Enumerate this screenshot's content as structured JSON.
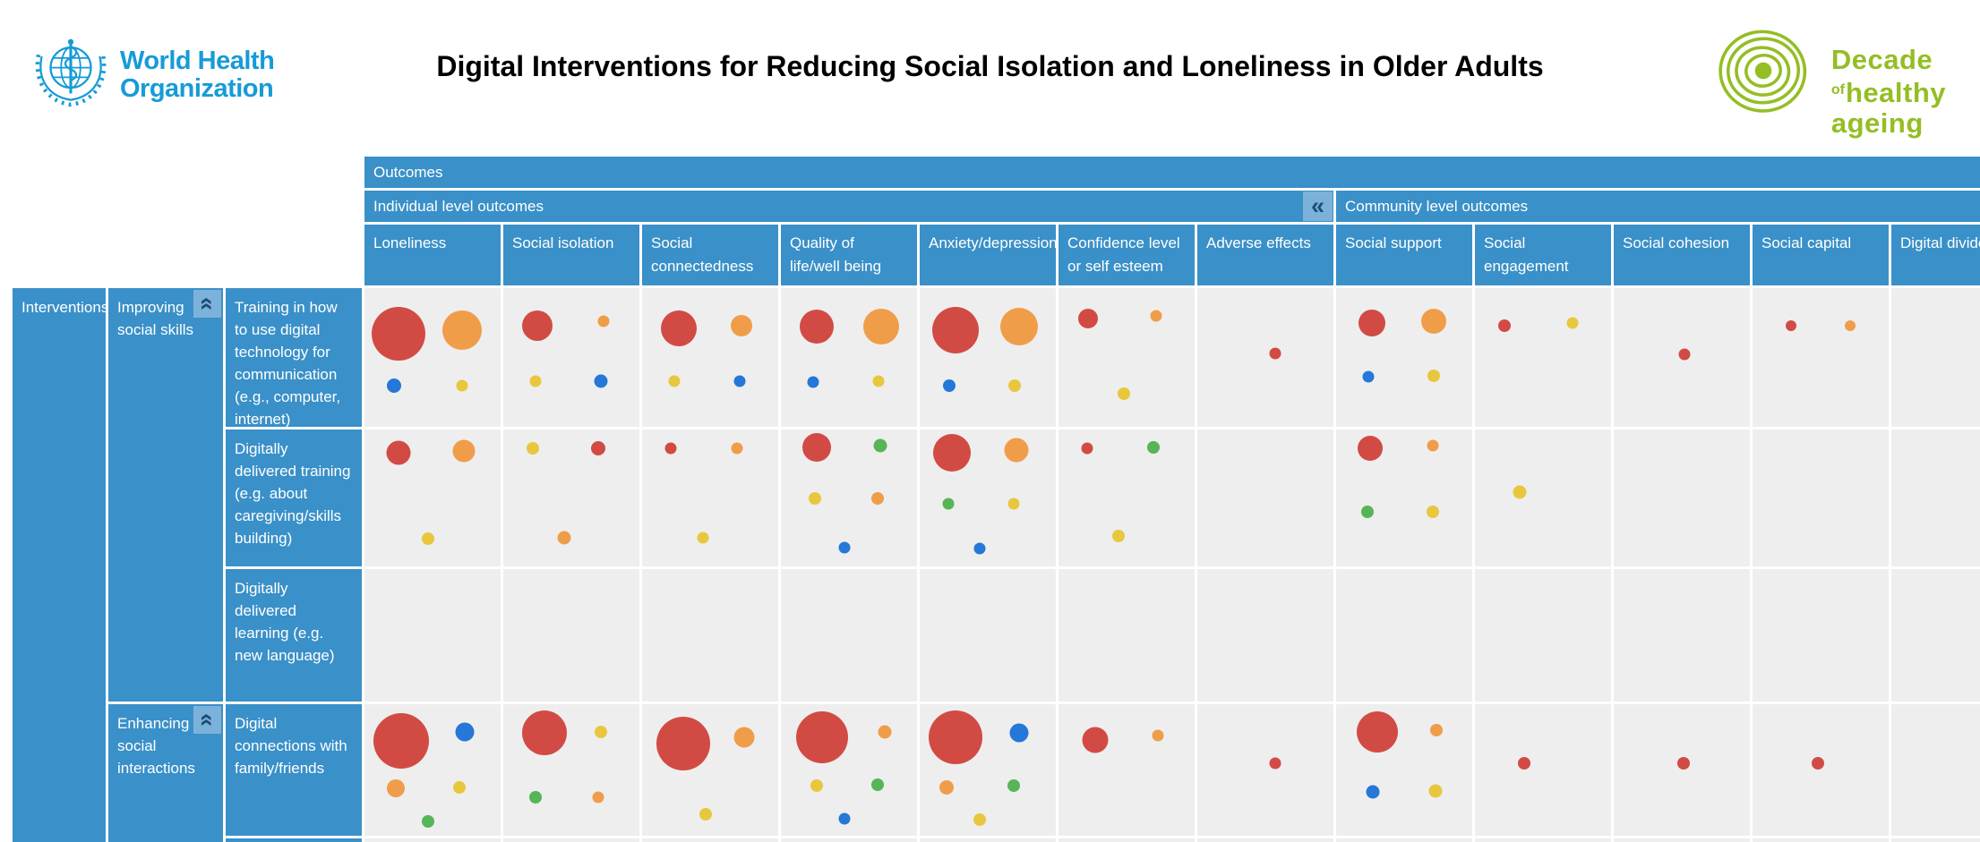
{
  "page": {
    "title": "Digital Interventions for Reducing Social Isolation and Loneliness in Older Adults"
  },
  "who_logo": {
    "line1": "World Health",
    "line2": "Organization"
  },
  "decade_logo": {
    "word1": "Decade",
    "word_of": "of",
    "word2": "healthy",
    "word3": "ageing"
  },
  "table": {
    "outcomes_header": "Outcomes",
    "individual_group": "Individual level outcomes",
    "community_group": "Community level outcomes",
    "collapse_icon": "«",
    "individual_span": 7,
    "community_span": 5,
    "interventions_header": "Interventions",
    "columns": [
      "Loneliness",
      "Social isolation",
      "Social connectedness",
      "Quality of life/well being",
      "Anxiety/depression",
      "Confidence level or self esteem",
      "Adverse effects",
      "Social support",
      "Social engagement",
      "Social cohesion",
      "Social capital",
      "Digital divide"
    ],
    "row_groups": [
      {
        "label": "Improving social skills",
        "interventions": [
          "Training in how to use digital technology for communication (e.g., computer, internet)",
          "Digitally delivered training (e.g. about caregiving/skills building)",
          "Digitally delivered learning (e.g. new language)"
        ]
      },
      {
        "label": "Enhancing social interactions",
        "interventions": [
          "Digital connections with family/friends"
        ]
      }
    ]
  },
  "colors": {
    "red": "#d14b44",
    "orange": "#f09d4a",
    "yellow": "#e8c73e",
    "blue": "#2577d8",
    "green": "#57b457",
    "header_blue": "#3a90c8",
    "cell_gray": "#eeeeee",
    "collapse_bg": "#7cb2d9",
    "collapse_glyph": "#1c4e77",
    "who_blue": "#169bd7",
    "decade_green": "#94be24"
  },
  "chart_data": {
    "type": "heatmap",
    "title": "Digital Interventions for Reducing Social Isolation and Loneliness in Older Adults",
    "legend_position": "none",
    "columns": [
      "Loneliness",
      "Social isolation",
      "Social connectedness",
      "Quality of life/well being",
      "Anxiety/depression",
      "Confidence level or self esteem",
      "Adverse effects",
      "Social support",
      "Social engagement",
      "Social cohesion",
      "Social capital",
      "Digital divide"
    ],
    "column_groups": [
      {
        "label": "Individual level outcomes",
        "columns": 7
      },
      {
        "label": "Community level outcomes",
        "columns": 5
      }
    ],
    "bubble_colors": [
      "red",
      "orange",
      "yellow",
      "blue",
      "green"
    ],
    "rows": [
      {
        "group": "Improving social skills",
        "intervention": "Training in how to use digital technology for communication (e.g., computer, internet)",
        "cells": [
          [
            {
              "c": "red",
              "d": 60,
              "x": 25,
              "y": 33
            },
            {
              "c": "orange",
              "d": 44,
              "x": 72,
              "y": 30
            },
            {
              "c": "blue",
              "d": 16,
              "x": 22,
              "y": 70
            },
            {
              "c": "yellow",
              "d": 13,
              "x": 72,
              "y": 70
            }
          ],
          [
            {
              "c": "red",
              "d": 34,
              "x": 25,
              "y": 27
            },
            {
              "c": "orange",
              "d": 13,
              "x": 74,
              "y": 24
            },
            {
              "c": "yellow",
              "d": 13,
              "x": 24,
              "y": 67
            },
            {
              "c": "blue",
              "d": 15,
              "x": 72,
              "y": 67
            }
          ],
          [
            {
              "c": "red",
              "d": 40,
              "x": 27,
              "y": 29
            },
            {
              "c": "orange",
              "d": 24,
              "x": 73,
              "y": 27
            },
            {
              "c": "yellow",
              "d": 13,
              "x": 24,
              "y": 67
            },
            {
              "c": "blue",
              "d": 13,
              "x": 72,
              "y": 67
            }
          ],
          [
            {
              "c": "red",
              "d": 38,
              "x": 26,
              "y": 28
            },
            {
              "c": "orange",
              "d": 40,
              "x": 74,
              "y": 28
            },
            {
              "c": "blue",
              "d": 13,
              "x": 24,
              "y": 68
            },
            {
              "c": "yellow",
              "d": 13,
              "x": 72,
              "y": 67
            }
          ],
          [
            {
              "c": "red",
              "d": 52,
              "x": 26,
              "y": 30
            },
            {
              "c": "orange",
              "d": 42,
              "x": 73,
              "y": 28
            },
            {
              "c": "blue",
              "d": 14,
              "x": 22,
              "y": 70
            },
            {
              "c": "yellow",
              "d": 14,
              "x": 70,
              "y": 70
            }
          ],
          [
            {
              "c": "red",
              "d": 22,
              "x": 22,
              "y": 22
            },
            {
              "c": "orange",
              "d": 13,
              "x": 72,
              "y": 20
            },
            {
              "c": "yellow",
              "d": 14,
              "x": 48,
              "y": 76
            }
          ],
          [
            {
              "c": "red",
              "d": 13,
              "x": 57,
              "y": 47
            }
          ],
          [
            {
              "c": "red",
              "d": 30,
              "x": 26,
              "y": 25
            },
            {
              "c": "orange",
              "d": 28,
              "x": 72,
              "y": 24
            },
            {
              "c": "blue",
              "d": 13,
              "x": 24,
              "y": 64
            },
            {
              "c": "yellow",
              "d": 14,
              "x": 72,
              "y": 63
            }
          ],
          [
            {
              "c": "red",
              "d": 14,
              "x": 22,
              "y": 27
            },
            {
              "c": "yellow",
              "d": 13,
              "x": 72,
              "y": 25
            }
          ],
          [
            {
              "c": "red",
              "d": 13,
              "x": 52,
              "y": 48
            }
          ],
          [
            {
              "c": "red",
              "d": 12,
              "x": 28,
              "y": 27
            },
            {
              "c": "orange",
              "d": 12,
              "x": 72,
              "y": 27
            }
          ],
          []
        ]
      },
      {
        "group": "Improving social skills",
        "intervention": "Digitally delivered training (e.g. about caregiving/skills building)",
        "cells": [
          [
            {
              "c": "red",
              "d": 27,
              "x": 25,
              "y": 17
            },
            {
              "c": "orange",
              "d": 25,
              "x": 73,
              "y": 16
            },
            {
              "c": "yellow",
              "d": 14,
              "x": 47,
              "y": 80
            }
          ],
          [
            {
              "c": "yellow",
              "d": 14,
              "x": 22,
              "y": 14
            },
            {
              "c": "red",
              "d": 16,
              "x": 70,
              "y": 14
            },
            {
              "c": "orange",
              "d": 15,
              "x": 45,
              "y": 79
            }
          ],
          [
            {
              "c": "red",
              "d": 13,
              "x": 21,
              "y": 14
            },
            {
              "c": "orange",
              "d": 13,
              "x": 70,
              "y": 14
            },
            {
              "c": "yellow",
              "d": 13,
              "x": 45,
              "y": 79
            }
          ],
          [
            {
              "c": "red",
              "d": 32,
              "x": 26,
              "y": 13
            },
            {
              "c": "green",
              "d": 15,
              "x": 73,
              "y": 12
            },
            {
              "c": "yellow",
              "d": 14,
              "x": 25,
              "y": 50
            },
            {
              "c": "orange",
              "d": 14,
              "x": 71,
              "y": 50
            },
            {
              "c": "blue",
              "d": 13,
              "x": 47,
              "y": 86
            }
          ],
          [
            {
              "c": "red",
              "d": 42,
              "x": 24,
              "y": 17
            },
            {
              "c": "orange",
              "d": 27,
              "x": 71,
              "y": 15
            },
            {
              "c": "green",
              "d": 13,
              "x": 21,
              "y": 54
            },
            {
              "c": "yellow",
              "d": 13,
              "x": 69,
              "y": 54
            },
            {
              "c": "blue",
              "d": 13,
              "x": 44,
              "y": 87
            }
          ],
          [
            {
              "c": "red",
              "d": 13,
              "x": 21,
              "y": 14
            },
            {
              "c": "green",
              "d": 14,
              "x": 70,
              "y": 13
            },
            {
              "c": "yellow",
              "d": 14,
              "x": 44,
              "y": 78
            }
          ],
          [],
          [
            {
              "c": "red",
              "d": 28,
              "x": 25,
              "y": 14
            },
            {
              "c": "orange",
              "d": 13,
              "x": 71,
              "y": 12
            },
            {
              "c": "green",
              "d": 14,
              "x": 23,
              "y": 60
            },
            {
              "c": "yellow",
              "d": 14,
              "x": 71,
              "y": 60
            }
          ],
          [
            {
              "c": "yellow",
              "d": 15,
              "x": 33,
              "y": 46
            }
          ],
          [],
          [],
          []
        ]
      },
      {
        "group": "Improving social skills",
        "intervention": "Digitally delivered learning (e.g. new language)",
        "cells": [
          [],
          [],
          [],
          [],
          [],
          [],
          [],
          [],
          [],
          [],
          [],
          []
        ]
      },
      {
        "group": "Enhancing social interactions",
        "intervention": "Digital connections with family/friends",
        "cells": [
          [
            {
              "c": "red",
              "d": 62,
              "x": 27,
              "y": 28
            },
            {
              "c": "blue",
              "d": 21,
              "x": 74,
              "y": 21
            },
            {
              "c": "orange",
              "d": 20,
              "x": 23,
              "y": 64
            },
            {
              "c": "yellow",
              "d": 14,
              "x": 70,
              "y": 63
            },
            {
              "c": "green",
              "d": 14,
              "x": 47,
              "y": 89
            }
          ],
          [
            {
              "c": "red",
              "d": 50,
              "x": 30,
              "y": 22
            },
            {
              "c": "yellow",
              "d": 14,
              "x": 72,
              "y": 21
            },
            {
              "c": "green",
              "d": 14,
              "x": 24,
              "y": 71
            },
            {
              "c": "orange",
              "d": 13,
              "x": 70,
              "y": 71
            }
          ],
          [
            {
              "c": "red",
              "d": 60,
              "x": 30,
              "y": 30
            },
            {
              "c": "orange",
              "d": 23,
              "x": 75,
              "y": 25
            },
            {
              "c": "yellow",
              "d": 14,
              "x": 47,
              "y": 84
            }
          ],
          [
            {
              "c": "red",
              "d": 58,
              "x": 30,
              "y": 25
            },
            {
              "c": "orange",
              "d": 15,
              "x": 76,
              "y": 21
            },
            {
              "c": "yellow",
              "d": 14,
              "x": 26,
              "y": 62
            },
            {
              "c": "green",
              "d": 14,
              "x": 71,
              "y": 61
            },
            {
              "c": "blue",
              "d": 13,
              "x": 47,
              "y": 87
            }
          ],
          [
            {
              "c": "red",
              "d": 60,
              "x": 26,
              "y": 25
            },
            {
              "c": "blue",
              "d": 21,
              "x": 73,
              "y": 22
            },
            {
              "c": "orange",
              "d": 16,
              "x": 20,
              "y": 63
            },
            {
              "c": "green",
              "d": 14,
              "x": 69,
              "y": 62
            },
            {
              "c": "yellow",
              "d": 14,
              "x": 44,
              "y": 88
            }
          ],
          [
            {
              "c": "red",
              "d": 29,
              "x": 27,
              "y": 27
            },
            {
              "c": "orange",
              "d": 13,
              "x": 73,
              "y": 24
            }
          ],
          [
            {
              "c": "red",
              "d": 13,
              "x": 57,
              "y": 45
            }
          ],
          [
            {
              "c": "red",
              "d": 46,
              "x": 30,
              "y": 21
            },
            {
              "c": "orange",
              "d": 14,
              "x": 74,
              "y": 20
            },
            {
              "c": "blue",
              "d": 15,
              "x": 27,
              "y": 67
            },
            {
              "c": "yellow",
              "d": 15,
              "x": 73,
              "y": 66
            }
          ],
          [
            {
              "c": "red",
              "d": 14,
              "x": 36,
              "y": 45
            }
          ],
          [
            {
              "c": "red",
              "d": 14,
              "x": 51,
              "y": 45
            }
          ],
          [
            {
              "c": "red",
              "d": 14,
              "x": 48,
              "y": 45
            }
          ],
          []
        ]
      }
    ]
  }
}
